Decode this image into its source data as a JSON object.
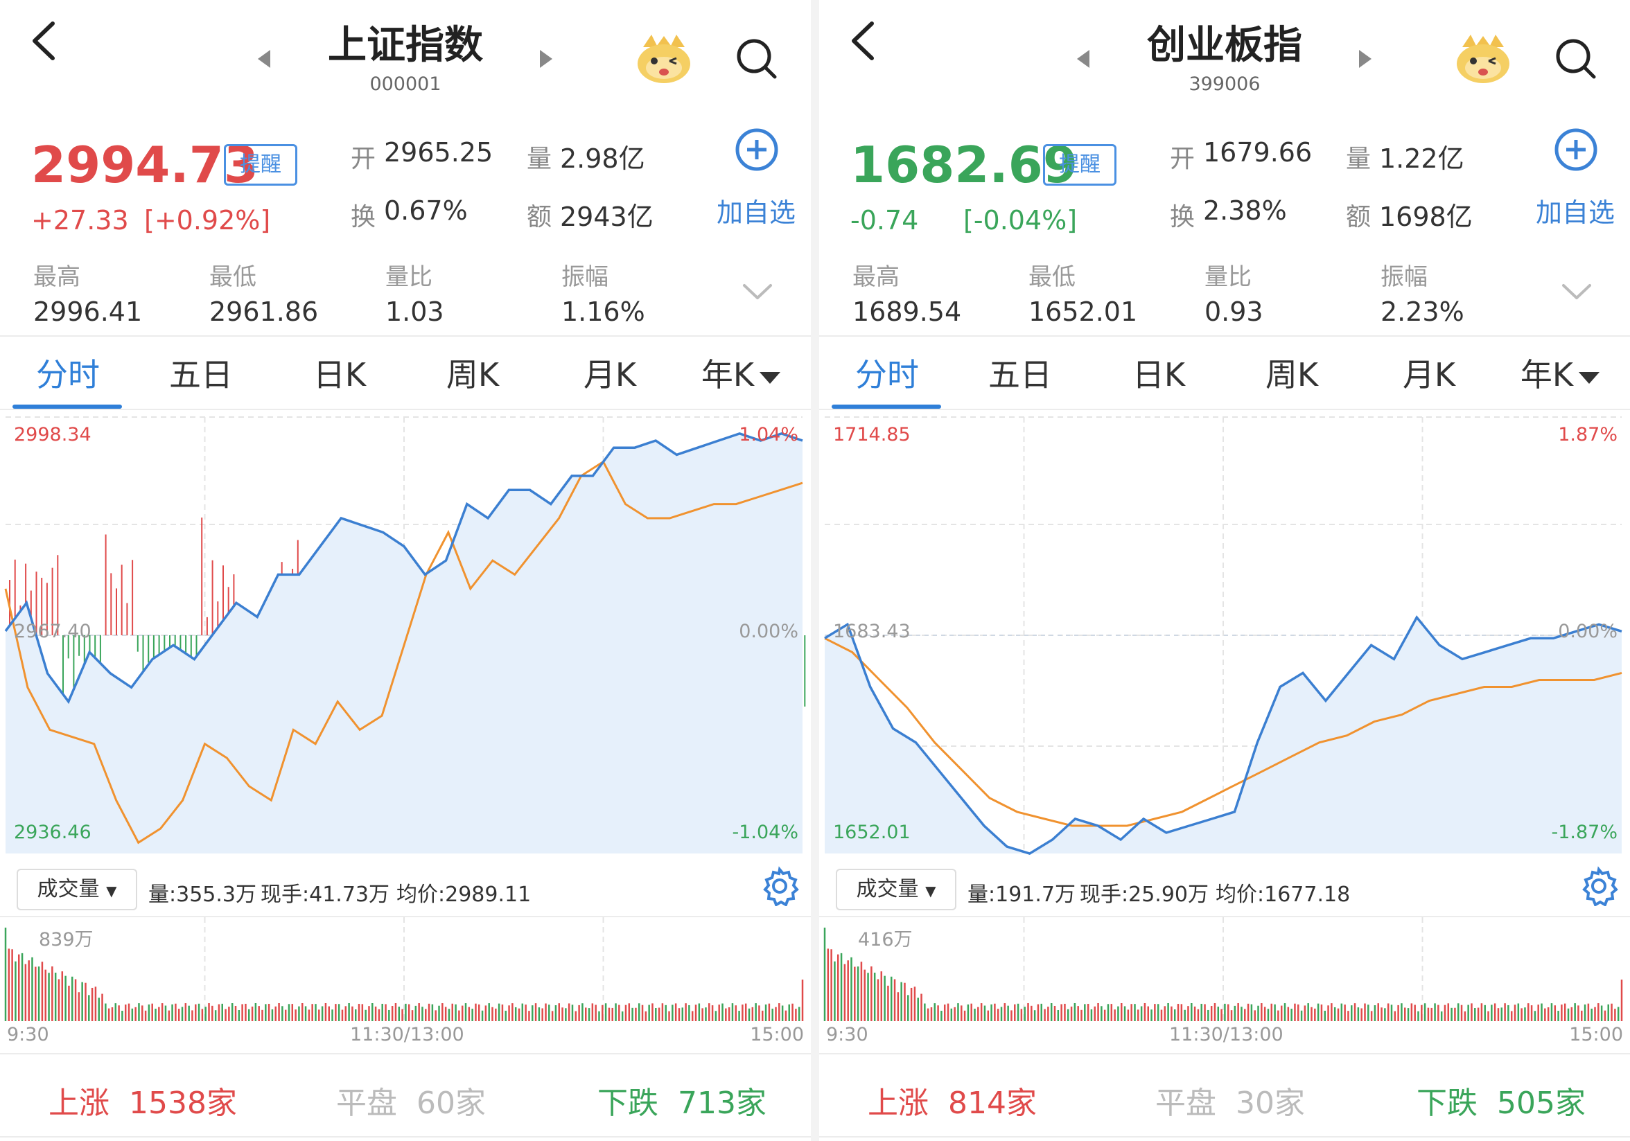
{
  "panels": [
    {
      "name": "上证指数",
      "code": "000001",
      "price": "2994.73",
      "change": "+27.33",
      "change_pct": "[+0.92%]",
      "remind_label": "提醒",
      "add_label": "加自选",
      "open_label": "开",
      "open": "2965.25",
      "vol_label": "量",
      "vol": "2.98亿",
      "turnover_label": "换",
      "turnover": "0.67%",
      "amount_label": "额",
      "amount": "2943亿",
      "stats": [
        {
          "label": "最高",
          "value": "2996.41",
          "color": "red"
        },
        {
          "label": "最低",
          "value": "2961.86",
          "color": "green"
        },
        {
          "label": "量比",
          "value": "1.03",
          "color": "black"
        },
        {
          "label": "振幅",
          "value": "1.16%",
          "color": "black"
        }
      ],
      "tabs": [
        "分时",
        "五日",
        "日K",
        "周K",
        "月K",
        "年K"
      ],
      "active_tab": "分时",
      "axis": {
        "top": "2998.34",
        "top_pct": "1.04%",
        "mid": "2967.40",
        "mid_pct": "0.00%",
        "bottom": "2936.46",
        "bottom_pct": "-1.04%"
      },
      "volume_selector": "成交量",
      "volume_info": {
        "vol": "量:355.3万",
        "hand": "现手:41.73万",
        "avg": "均价:2989.11"
      },
      "volume_max": "839万",
      "time_labels": [
        "9:30",
        "11:30/13:00",
        "15:00"
      ],
      "breadth": {
        "up_label": "上涨",
        "up": "1538家",
        "flat_label": "平盘",
        "flat": "60家",
        "down_label": "下跌",
        "down": "713家"
      }
    },
    {
      "name": "创业板指",
      "code": "399006",
      "price": "1682.69",
      "change": "-0.74",
      "change_pct": "[-0.04%]",
      "remind_label": "提醒",
      "add_label": "加自选",
      "open_label": "开",
      "open": "1679.66",
      "vol_label": "量",
      "vol": "1.22亿",
      "turnover_label": "换",
      "turnover": "2.38%",
      "amount_label": "额",
      "amount": "1698亿",
      "stats": [
        {
          "label": "最高",
          "value": "1689.54",
          "color": "red"
        },
        {
          "label": "最低",
          "value": "1652.01",
          "color": "green"
        },
        {
          "label": "量比",
          "value": "0.93",
          "color": "black"
        },
        {
          "label": "振幅",
          "value": "2.23%",
          "color": "black"
        }
      ],
      "tabs": [
        "分时",
        "五日",
        "日K",
        "周K",
        "月K",
        "年K"
      ],
      "active_tab": "分时",
      "axis": {
        "top": "1714.85",
        "top_pct": "1.87%",
        "mid": "1683.43",
        "mid_pct": "0.00%",
        "bottom": "1652.01",
        "bottom_pct": "-1.87%"
      },
      "volume_selector": "成交量",
      "volume_info": {
        "vol": "量:191.7万",
        "hand": "现手:25.90万",
        "avg": "均价:1677.18"
      },
      "volume_max": "416万",
      "time_labels": [
        "9:30",
        "11:30/13:00",
        "15:00"
      ],
      "breadth": {
        "up_label": "上涨",
        "up": "814家",
        "flat_label": "平盘",
        "flat": "30家",
        "down_label": "下跌",
        "down": "505家"
      }
    }
  ],
  "colors": {
    "up": "#e04a4a",
    "down": "#3aa55a",
    "price_line": "#3b7fd1",
    "avg_line": "#f0922f",
    "accent": "#2f7fd8",
    "fill": "#e6f0fb"
  },
  "icons": [
    "back-arrow-icon",
    "prev-triangle-icon",
    "next-triangle-icon",
    "mascot-icon",
    "search-icon",
    "add-circle-icon",
    "chevron-down-icon",
    "gear-icon",
    "dropdown-triangle-icon"
  ],
  "chart_data": [
    {
      "type": "line",
      "title": "上证指数",
      "x_range": [
        "9:30",
        "15:00"
      ],
      "ylim": [
        2936.46,
        2998.34
      ],
      "baseline": 2967.4,
      "series": [
        {
          "values": [
            2968,
            2972,
            2962,
            2958,
            2965,
            2962,
            2960,
            2964,
            2966,
            2964,
            2968,
            2972,
            2970,
            2976,
            2976,
            2980,
            2984,
            2983,
            2982,
            2980,
            2976,
            2978,
            2986,
            2984,
            2988,
            2988,
            2986,
            2990,
            2990,
            2994,
            2994,
            2995,
            2993,
            2994,
            2995,
            2996,
            2995,
            2996,
            2995
          ]
        },
        {
          "values": [
            2974,
            2960,
            2954,
            2953,
            2952,
            2944,
            2938,
            2940,
            2944,
            2952,
            2950,
            2946,
            2944,
            2954,
            2952,
            2958,
            2954,
            2956,
            2966,
            2976,
            2982,
            2974,
            2978,
            2976,
            2980,
            2984,
            2990,
            2992,
            2986,
            2984,
            2984,
            2985,
            2986,
            2986,
            2987,
            2988,
            2989
          ]
        }
      ]
    },
    {
      "type": "line",
      "title": "创业板指",
      "x_range": [
        "9:30",
        "15:00"
      ],
      "ylim": [
        1652.01,
        1714.85
      ],
      "baseline": 1683.43,
      "series": [
        {
          "values": [
            1683,
            1685,
            1676,
            1670,
            1668,
            1664,
            1660,
            1656,
            1653,
            1652,
            1654,
            1657,
            1656,
            1654,
            1657,
            1655,
            1656,
            1657,
            1658,
            1668,
            1676,
            1678,
            1674,
            1678,
            1682,
            1680,
            1686,
            1682,
            1680,
            1681,
            1682,
            1683,
            1683,
            1684,
            1685,
            1684
          ]
        },
        {
          "values": [
            1683,
            1681,
            1677,
            1673,
            1668,
            1664,
            1660,
            1658,
            1657,
            1656,
            1656,
            1656,
            1657,
            1658,
            1660,
            1662,
            1664,
            1666,
            1668,
            1669,
            1671,
            1672,
            1674,
            1675,
            1676,
            1676,
            1677,
            1677,
            1677,
            1678
          ]
        }
      ]
    }
  ]
}
